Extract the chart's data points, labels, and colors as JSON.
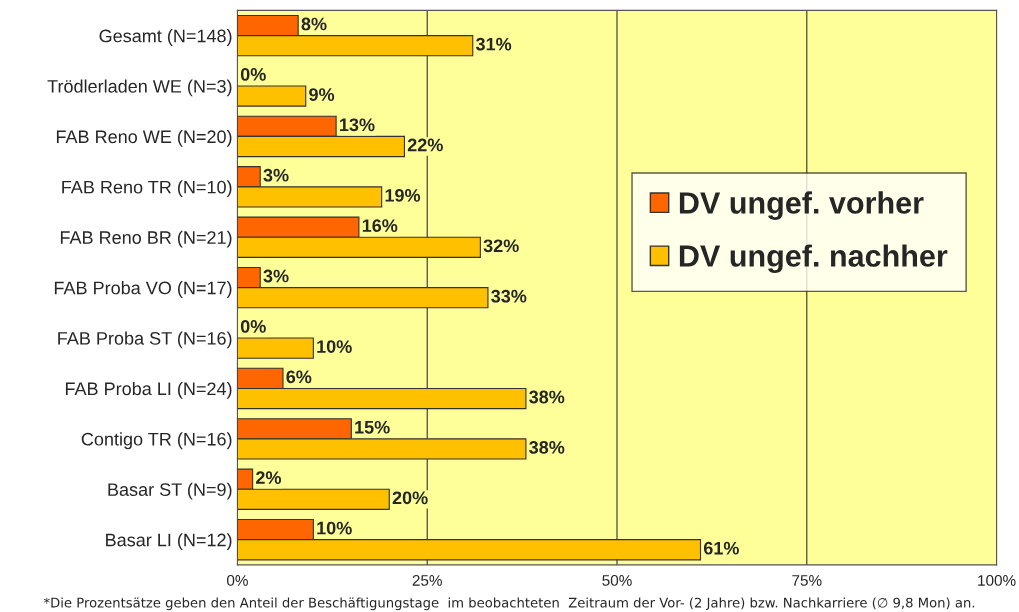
{
  "chart_data": {
    "type": "bar",
    "orientation": "horizontal",
    "categories": [
      "Gesamt (N=148)",
      "Trödlerladen WE (N=3)",
      "FAB Reno WE (N=20)",
      "FAB Reno TR (N=10)",
      "FAB Reno BR (N=21)",
      "FAB Proba VO (N=17)",
      "FAB Proba ST (N=16)",
      "FAB Proba LI (N=24)",
      "Contigo TR (N=16)",
      "Basar ST (N=9)",
      "Basar LI (N=12)"
    ],
    "series": [
      {
        "name": "DV ungef. vorher",
        "color": "#ff6600",
        "values": [
          8,
          0,
          13,
          3,
          16,
          3,
          0,
          6,
          15,
          2,
          10
        ],
        "value_labels": [
          "8%",
          "0%",
          "13%",
          "3%",
          "16%",
          "3%",
          "0%",
          "6%",
          "15%",
          "2%",
          "10%"
        ]
      },
      {
        "name": "DV ungef. nachher",
        "color": "#ffc000",
        "values": [
          31,
          9,
          22,
          19,
          32,
          33,
          10,
          38,
          38,
          20,
          61
        ],
        "value_labels": [
          "31%",
          "9%",
          "22%",
          "19%",
          "32%",
          "33%",
          "10%",
          "38%",
          "38%",
          "20%",
          "61%"
        ]
      }
    ],
    "xlim": [
      0,
      100
    ],
    "xticks": [
      {
        "value": 0,
        "label": "0%"
      },
      {
        "value": 25,
        "label": "25%"
      },
      {
        "value": 50,
        "label": "50%"
      },
      {
        "value": 75,
        "label": "75%"
      },
      {
        "value": 100,
        "label": "100%"
      }
    ],
    "grid": "x",
    "legend": "right",
    "annotations": [
      "*Die Prozentsätze geben den Anteil der Beschäftigungstage  im beobachteten  Zeitraum der Vor- (2 Jahre) bzw. Nachkarriere (∅ 9,8 Mon) an."
    ]
  }
}
